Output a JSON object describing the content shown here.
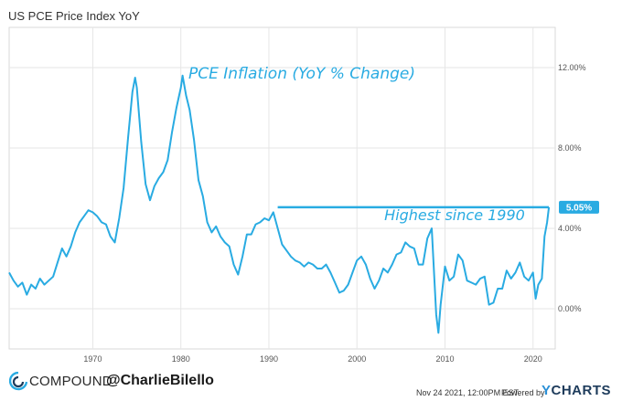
{
  "header": {
    "title": "US PCE Price Index YoY"
  },
  "footer": {
    "brand": "COMPOUND",
    "handle": "@CharlieBilello",
    "timestamp": "Nov 24 2021, 12:00PM EST.",
    "powered_by": "Powered by",
    "provider": "CHARTS",
    "provider_initial": "Y"
  },
  "colors": {
    "line": "#29abe2",
    "grid": "#e6e6e6",
    "axis_text": "#555555",
    "badge": "#29abe2"
  },
  "chart_data": {
    "type": "line",
    "title": "PCE Inflation (YoY % Change)",
    "annotation": "Highest since 1990",
    "last_value_label": "5.05%",
    "ylim": [
      -2.0,
      14.0
    ],
    "xlim": [
      1960.5,
      2022.0
    ],
    "yticks": [
      0,
      4,
      8,
      12
    ],
    "ytick_labels": [
      "0.00%",
      "4.00%",
      "8.00%",
      "12.00%"
    ],
    "xticks": [
      1970,
      1980,
      1990,
      2000,
      2010,
      2020
    ],
    "xtick_labels": [
      "1970",
      "1980",
      "1990",
      "2000",
      "2010",
      "2020"
    ],
    "highlight": {
      "from_x": 1991.0,
      "to_x": 2021.8,
      "y": 5.05
    },
    "series": [
      {
        "values": [
          [
            1960.5,
            1.8
          ],
          [
            1961,
            1.4
          ],
          [
            1961.5,
            1.1
          ],
          [
            1962,
            1.3
          ],
          [
            1962.5,
            0.7
          ],
          [
            1963,
            1.2
          ],
          [
            1963.5,
            1.0
          ],
          [
            1964,
            1.5
          ],
          [
            1964.5,
            1.2
          ],
          [
            1965,
            1.4
          ],
          [
            1965.5,
            1.6
          ],
          [
            1966,
            2.3
          ],
          [
            1966.5,
            3.0
          ],
          [
            1967,
            2.6
          ],
          [
            1967.5,
            3.1
          ],
          [
            1968,
            3.8
          ],
          [
            1968.5,
            4.3
          ],
          [
            1969,
            4.6
          ],
          [
            1969.5,
            4.9
          ],
          [
            1970,
            4.8
          ],
          [
            1970.5,
            4.6
          ],
          [
            1971,
            4.3
          ],
          [
            1971.5,
            4.2
          ],
          [
            1972,
            3.6
          ],
          [
            1972.5,
            3.3
          ],
          [
            1973,
            4.5
          ],
          [
            1973.5,
            6.0
          ],
          [
            1974,
            8.5
          ],
          [
            1974.5,
            10.8
          ],
          [
            1974.8,
            11.5
          ],
          [
            1975,
            11.0
          ],
          [
            1975.5,
            8.3
          ],
          [
            1976,
            6.2
          ],
          [
            1976.5,
            5.4
          ],
          [
            1977,
            6.1
          ],
          [
            1977.5,
            6.5
          ],
          [
            1978,
            6.8
          ],
          [
            1978.5,
            7.4
          ],
          [
            1979,
            8.8
          ],
          [
            1979.5,
            10.0
          ],
          [
            1980,
            11.0
          ],
          [
            1980.2,
            11.6
          ],
          [
            1980.6,
            10.6
          ],
          [
            1981,
            9.9
          ],
          [
            1981.5,
            8.4
          ],
          [
            1982,
            6.4
          ],
          [
            1982.5,
            5.6
          ],
          [
            1983,
            4.3
          ],
          [
            1983.5,
            3.8
          ],
          [
            1984,
            4.1
          ],
          [
            1984.5,
            3.6
          ],
          [
            1985,
            3.3
          ],
          [
            1985.5,
            3.1
          ],
          [
            1986,
            2.2
          ],
          [
            1986.5,
            1.7
          ],
          [
            1987,
            2.6
          ],
          [
            1987.5,
            3.7
          ],
          [
            1988,
            3.7
          ],
          [
            1988.5,
            4.2
          ],
          [
            1989,
            4.3
          ],
          [
            1989.5,
            4.5
          ],
          [
            1990,
            4.4
          ],
          [
            1990.5,
            4.8
          ],
          [
            1991,
            4.0
          ],
          [
            1991.5,
            3.2
          ],
          [
            1992,
            2.9
          ],
          [
            1992.5,
            2.6
          ],
          [
            1993,
            2.4
          ],
          [
            1993.5,
            2.3
          ],
          [
            1994,
            2.1
          ],
          [
            1994.5,
            2.3
          ],
          [
            1995,
            2.2
          ],
          [
            1995.5,
            2.0
          ],
          [
            1996,
            2.0
          ],
          [
            1996.5,
            2.2
          ],
          [
            1997,
            1.8
          ],
          [
            1997.5,
            1.3
          ],
          [
            1998,
            0.8
          ],
          [
            1998.5,
            0.9
          ],
          [
            1999,
            1.2
          ],
          [
            1999.5,
            1.8
          ],
          [
            2000,
            2.4
          ],
          [
            2000.5,
            2.6
          ],
          [
            2001,
            2.2
          ],
          [
            2001.5,
            1.5
          ],
          [
            2002,
            1.0
          ],
          [
            2002.5,
            1.4
          ],
          [
            2003,
            2.0
          ],
          [
            2003.5,
            1.8
          ],
          [
            2004,
            2.2
          ],
          [
            2004.5,
            2.7
          ],
          [
            2005,
            2.8
          ],
          [
            2005.5,
            3.3
          ],
          [
            2006,
            3.1
          ],
          [
            2006.5,
            3.0
          ],
          [
            2007,
            2.2
          ],
          [
            2007.5,
            2.2
          ],
          [
            2008,
            3.5
          ],
          [
            2008.5,
            4.0
          ],
          [
            2009,
            -0.3
          ],
          [
            2009.25,
            -1.2
          ],
          [
            2009.5,
            0.2
          ],
          [
            2010,
            2.1
          ],
          [
            2010.5,
            1.4
          ],
          [
            2011,
            1.6
          ],
          [
            2011.5,
            2.7
          ],
          [
            2012,
            2.4
          ],
          [
            2012.5,
            1.4
          ],
          [
            2013,
            1.3
          ],
          [
            2013.5,
            1.2
          ],
          [
            2014,
            1.5
          ],
          [
            2014.5,
            1.6
          ],
          [
            2015,
            0.2
          ],
          [
            2015.5,
            0.3
          ],
          [
            2016,
            1.0
          ],
          [
            2016.5,
            1.0
          ],
          [
            2017,
            1.9
          ],
          [
            2017.5,
            1.5
          ],
          [
            2018,
            1.8
          ],
          [
            2018.5,
            2.3
          ],
          [
            2019,
            1.6
          ],
          [
            2019.5,
            1.4
          ],
          [
            2020,
            1.8
          ],
          [
            2020.3,
            0.5
          ],
          [
            2020.6,
            1.2
          ],
          [
            2021,
            1.5
          ],
          [
            2021.3,
            3.6
          ],
          [
            2021.6,
            4.3
          ],
          [
            2021.8,
            5.05
          ]
        ]
      }
    ]
  }
}
